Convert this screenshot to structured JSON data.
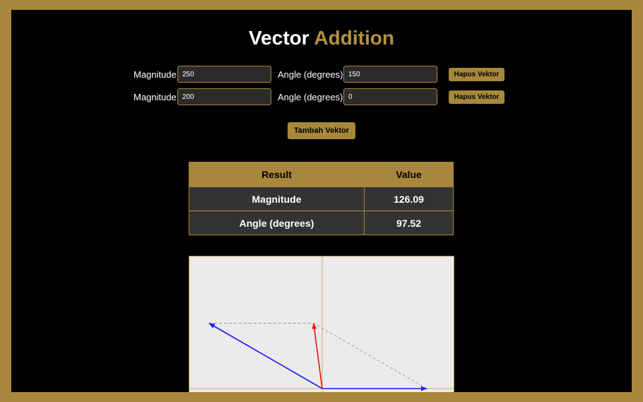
{
  "page": {
    "title_main": "Vector",
    "title_accent": "Addition"
  },
  "vectors": [
    {
      "magnitude_label": "Magnitude:",
      "magnitude": "250",
      "angle_label": "Angle (degrees):",
      "angle": "150",
      "remove_label": "Hapus Vektor"
    },
    {
      "magnitude_label": "Magnitude:",
      "magnitude": "200",
      "angle_label": "Angle (degrees):",
      "angle": "0",
      "remove_label": "Hapus Vektor"
    }
  ],
  "add_button": "Tambah Vektor",
  "result_table": {
    "headers": [
      "Result",
      "Value"
    ],
    "rows": [
      {
        "label": "Magnitude",
        "value": "126.09"
      },
      {
        "label": "Angle (degrees)",
        "value": "97.52"
      }
    ]
  },
  "plot": {
    "colors": {
      "vector": "#1a1aff",
      "resultant": "#ee1111",
      "helper": "#999999",
      "axis": "#c8b070",
      "accent": "#a7873b"
    }
  }
}
